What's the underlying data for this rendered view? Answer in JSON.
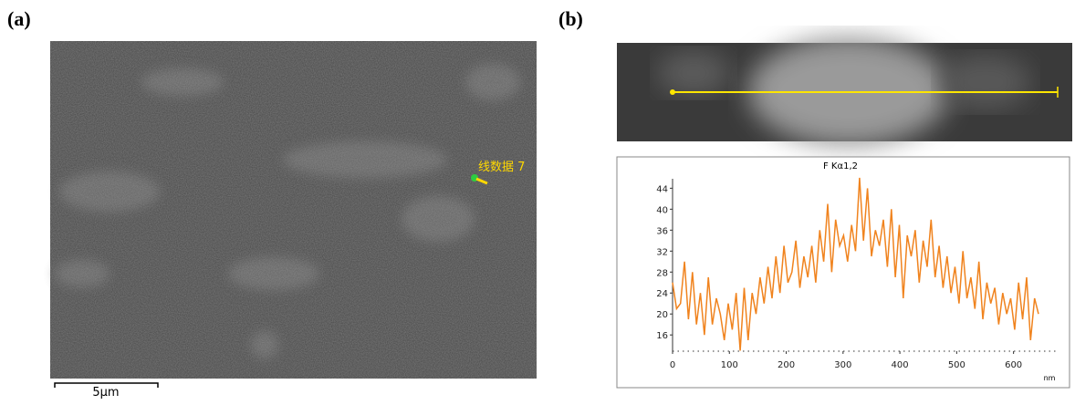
{
  "panel_a": {
    "label": "(a)",
    "annotation": "线数据 7",
    "scale_bar": "5μm"
  },
  "panel_b": {
    "label": "(b)"
  },
  "chart_data": {
    "type": "line",
    "title": "F Kα1,2",
    "x_label": "nm",
    "color": "#f0831e",
    "x": [
      0,
      7,
      14,
      21,
      28,
      35,
      42,
      49,
      56,
      63,
      70,
      77,
      84,
      91,
      98,
      105,
      112,
      119,
      126,
      133,
      140,
      147,
      154,
      161,
      168,
      175,
      182,
      189,
      196,
      203,
      210,
      217,
      224,
      231,
      238,
      245,
      252,
      259,
      266,
      273,
      280,
      287,
      294,
      301,
      308,
      315,
      322,
      329,
      336,
      343,
      350,
      357,
      364,
      371,
      378,
      385,
      392,
      399,
      406,
      413,
      420,
      427,
      434,
      441,
      448,
      455,
      462,
      469,
      476,
      483,
      490,
      497,
      504,
      511,
      518,
      525,
      532,
      539,
      546,
      553,
      560,
      567,
      574,
      581,
      588,
      595,
      602,
      609,
      616,
      623,
      630,
      637,
      644
    ],
    "values": [
      26,
      21,
      22,
      30,
      19,
      28,
      18,
      24,
      16,
      27,
      18,
      23,
      20,
      15,
      22,
      17,
      24,
      13,
      25,
      15,
      24,
      20,
      27,
      22,
      29,
      23,
      31,
      24,
      33,
      26,
      28,
      34,
      25,
      31,
      27,
      33,
      26,
      36,
      30,
      41,
      28,
      38,
      33,
      35,
      30,
      37,
      32,
      46,
      34,
      44,
      31,
      36,
      33,
      38,
      29,
      40,
      27,
      37,
      23,
      35,
      31,
      36,
      26,
      34,
      29,
      38,
      27,
      33,
      25,
      31,
      24,
      29,
      22,
      32,
      23,
      27,
      21,
      30,
      19,
      26,
      22,
      25,
      18,
      24,
      20,
      23,
      17,
      26,
      19,
      27,
      15,
      23,
      20
    ],
    "xlim": [
      0,
      660
    ],
    "ylim": [
      12.9,
      46.5
    ],
    "xticks": [
      0,
      100,
      200,
      300,
      400,
      500,
      600
    ],
    "yticks": [
      16,
      20,
      24,
      28,
      32,
      36,
      40,
      44
    ]
  }
}
